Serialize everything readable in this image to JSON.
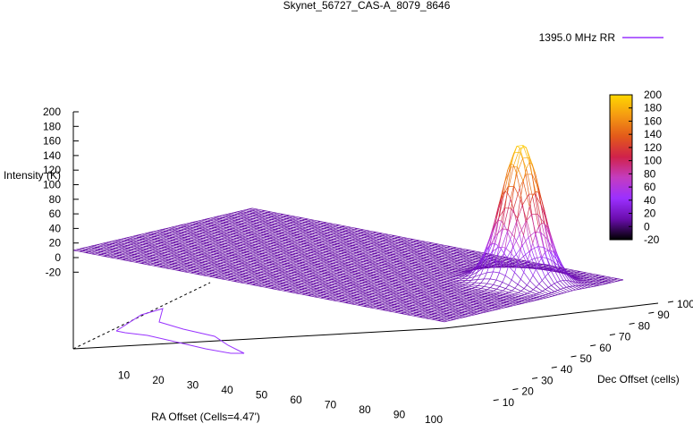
{
  "chart_data": {
    "type": "surface3d",
    "title": "Skynet_56727_CAS-A_8079_8646",
    "legend": {
      "label": "1395.0 MHz RR",
      "placement": "top-right"
    },
    "xlabel": "RA Offset (Cells=4.47')",
    "ylabel": "Dec Offset (cells)",
    "zlabel": "Intensity (K)",
    "xlim": [
      0,
      100
    ],
    "ylim": [
      0,
      100
    ],
    "zlim": [
      -20,
      200
    ],
    "x_ticks": [
      "10",
      "20",
      "30",
      "40",
      "50",
      "60",
      "70",
      "80",
      "90",
      "100"
    ],
    "y_ticks": [
      "10",
      "20",
      "30",
      "40",
      "50",
      "60",
      "70",
      "80",
      "90",
      "100"
    ],
    "z_ticks": [
      "200",
      "180",
      "160",
      "140",
      "120",
      "100",
      "80",
      "60",
      "40",
      "20",
      "0",
      "-20"
    ],
    "colorbar": {
      "range": [
        -20,
        200
      ],
      "ticks": [
        "200",
        "180",
        "160",
        "140",
        "120",
        "100",
        "80",
        "60",
        "40",
        "20",
        "0",
        "-20"
      ],
      "colors": [
        "#000000",
        "#6a0dad",
        "#9b30ff",
        "#c43cc0",
        "#d0224a",
        "#e35a1a",
        "#f59a12",
        "#ffd700"
      ]
    },
    "peak": {
      "x": 86,
      "y": 72,
      "z": 200
    },
    "baseline_z": 10,
    "line_color": "#9933ff"
  }
}
